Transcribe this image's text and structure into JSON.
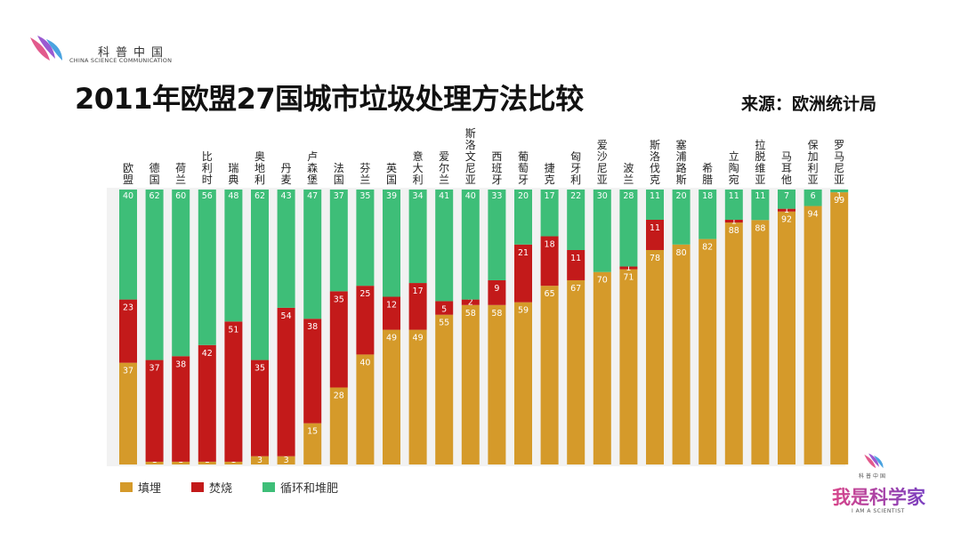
{
  "header": {
    "logo_cn": "科普中国",
    "logo_en": "CHINA SCIENCE COMMUNICATION",
    "title": "2011年欧盟27国城市垃圾处理方法比较",
    "source": "来源：欧洲统计局"
  },
  "brand": {
    "small_cn": "科普中国",
    "name": "我是科学家",
    "en": "I AM A SCIENTIST"
  },
  "colors": {
    "landfill": "#d59a2a",
    "incineration": "#c31a1a",
    "recycling": "#3ebe78"
  },
  "chart_data": {
    "type": "bar",
    "stacked": true,
    "categories": [
      "欧盟",
      "德国",
      "荷兰",
      "比利时",
      "瑞典",
      "奥地利",
      "丹麦",
      "卢森堡",
      "法国",
      "芬兰",
      "英国",
      "意大利",
      "爱尔兰",
      "斯洛文尼亚",
      "西班牙",
      "葡萄牙",
      "捷克",
      "匈牙利",
      "爱沙尼亚",
      "波兰",
      "斯洛伐克",
      "塞浦路斯",
      "希腊",
      "立陶宛",
      "拉脱维亚",
      "马耳他",
      "保加利亚",
      "罗马尼亚"
    ],
    "series": [
      {
        "name": "填埋",
        "values": [
          37,
          1,
          1,
          1,
          1,
          3,
          3,
          15,
          28,
          40,
          49,
          49,
          55,
          58,
          58,
          59,
          65,
          67,
          70,
          71,
          78,
          80,
          82,
          88,
          88,
          92,
          94,
          99
        ]
      },
      {
        "name": "焚烧",
        "values": [
          23,
          37,
          38,
          42,
          51,
          35,
          54,
          38,
          35,
          25,
          12,
          17,
          5,
          2,
          9,
          21,
          18,
          11,
          0,
          1,
          11,
          0,
          0,
          1,
          0,
          1,
          0,
          0
        ]
      },
      {
        "name": "循环和堆肥",
        "values": [
          40,
          62,
          60,
          56,
          48,
          62,
          43,
          47,
          37,
          35,
          39,
          34,
          41,
          40,
          33,
          20,
          17,
          22,
          30,
          28,
          11,
          20,
          18,
          11,
          11,
          7,
          6,
          1
        ]
      }
    ],
    "ylim": [
      0,
      100
    ],
    "legend": "bottom-left"
  }
}
